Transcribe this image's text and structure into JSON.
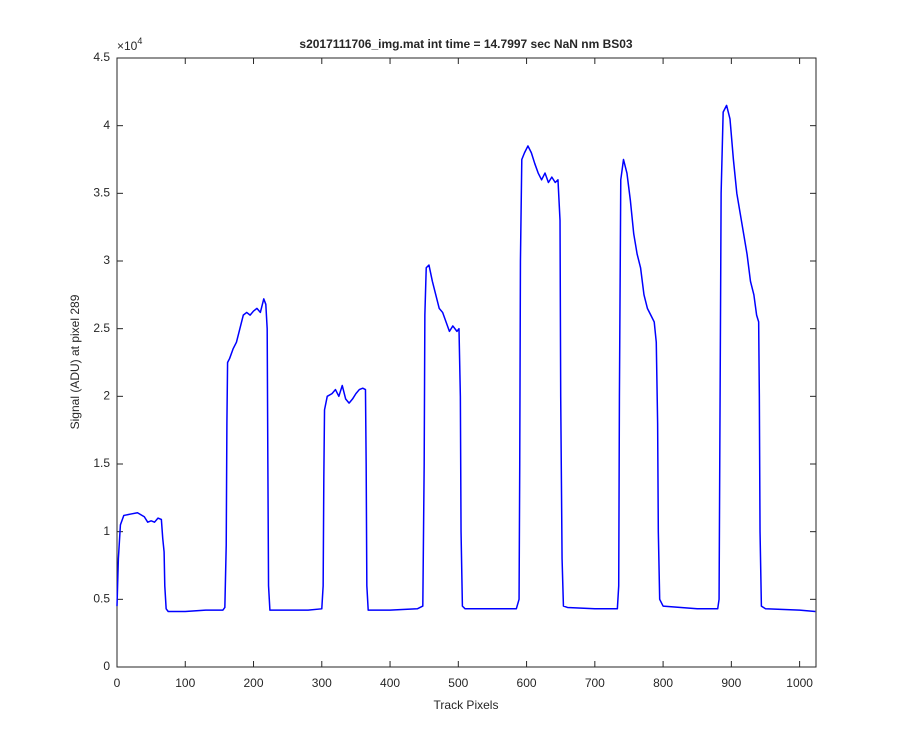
{
  "chart_data": {
    "type": "line",
    "title": "s2017111706_img.mat int time = 14.7997 sec  NaN nm BS03",
    "xlabel": "Track Pixels",
    "ylabel": "Signal (ADU) at pixel 289",
    "y_exponent_base": "×10",
    "y_exponent_power": "4",
    "color": "#0000ff",
    "xlim": [
      0,
      1024
    ],
    "ylim": [
      0,
      4.5
    ],
    "xticks": [
      0,
      100,
      200,
      300,
      400,
      500,
      600,
      700,
      800,
      900,
      1000
    ],
    "yticks": [
      0,
      0.5,
      1,
      1.5,
      2,
      2.5,
      3,
      3.5,
      4,
      4.5
    ],
    "x": [
      0,
      2,
      5,
      10,
      20,
      30,
      40,
      45,
      50,
      55,
      60,
      65,
      67,
      69,
      70,
      72,
      75,
      100,
      130,
      155,
      158,
      160,
      161,
      162,
      165,
      170,
      175,
      180,
      185,
      190,
      195,
      200,
      205,
      210,
      215,
      218,
      220,
      221,
      222,
      224,
      250,
      280,
      300,
      302,
      303,
      304,
      308,
      315,
      320,
      325,
      330,
      335,
      340,
      345,
      350,
      355,
      360,
      364,
      365,
      366,
      368,
      400,
      440,
      448,
      450,
      451,
      453,
      457,
      462,
      467,
      472,
      477,
      482,
      487,
      492,
      498,
      501,
      503,
      504,
      506,
      510,
      550,
      585,
      589,
      590,
      591,
      593,
      597,
      602,
      607,
      612,
      617,
      622,
      627,
      632,
      637,
      642,
      646,
      649,
      650,
      652,
      654,
      660,
      700,
      733,
      735,
      736,
      738,
      742,
      747,
      752,
      757,
      762,
      767,
      772,
      777,
      782,
      787,
      790,
      792,
      793,
      795,
      800,
      850,
      880,
      882,
      883,
      885,
      888,
      893,
      898,
      903,
      908,
      913,
      918,
      923,
      928,
      933,
      937,
      940,
      941,
      942,
      944,
      950,
      1000,
      1023
    ],
    "values": [
      0.45,
      0.8,
      1.05,
      1.12,
      1.13,
      1.14,
      1.11,
      1.07,
      1.08,
      1.07,
      1.1,
      1.09,
      0.95,
      0.85,
      0.6,
      0.43,
      0.41,
      0.41,
      0.42,
      0.42,
      0.44,
      0.9,
      1.8,
      2.25,
      2.28,
      2.35,
      2.4,
      2.5,
      2.6,
      2.62,
      2.6,
      2.63,
      2.65,
      2.62,
      2.72,
      2.68,
      2.5,
      1.5,
      0.6,
      0.42,
      0.42,
      0.42,
      0.43,
      0.6,
      1.4,
      1.9,
      2.0,
      2.02,
      2.05,
      2.0,
      2.08,
      1.98,
      1.95,
      1.98,
      2.02,
      2.05,
      2.06,
      2.05,
      1.5,
      0.6,
      0.42,
      0.42,
      0.43,
      0.45,
      1.5,
      2.6,
      2.95,
      2.97,
      2.85,
      2.75,
      2.65,
      2.62,
      2.55,
      2.48,
      2.52,
      2.48,
      2.5,
      2.0,
      1.0,
      0.45,
      0.43,
      0.43,
      0.43,
      0.5,
      1.5,
      3.0,
      3.75,
      3.8,
      3.85,
      3.8,
      3.72,
      3.65,
      3.6,
      3.65,
      3.58,
      3.62,
      3.58,
      3.6,
      3.3,
      2.0,
      0.8,
      0.45,
      0.44,
      0.43,
      0.43,
      0.6,
      2.0,
      3.6,
      3.75,
      3.65,
      3.45,
      3.2,
      3.05,
      2.95,
      2.75,
      2.65,
      2.6,
      2.55,
      2.4,
      1.8,
      1.0,
      0.5,
      0.45,
      0.43,
      0.43,
      0.5,
      1.5,
      3.5,
      4.1,
      4.15,
      4.05,
      3.75,
      3.5,
      3.35,
      3.2,
      3.05,
      2.85,
      2.75,
      2.6,
      2.55,
      2.0,
      1.0,
      0.45,
      0.43,
      0.42,
      0.41
    ]
  }
}
